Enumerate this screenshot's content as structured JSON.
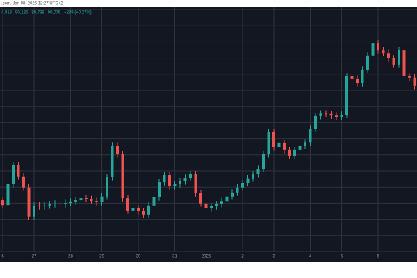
{
  "chart_data": {
    "type": "candlestick",
    "title": ".com, Jan 08, 2026 12:27 UTC+2",
    "ohlc_labels": [
      "4,813",
      "90,135",
      "89,798",
      "90,076",
      "+239 (+0.27%)"
    ],
    "up_color": "#26a69a",
    "down_color": "#ef5350",
    "ylim": [
      86000,
      92000
    ],
    "categories": [
      "6",
      null,
      null,
      null,
      null,
      null,
      "27",
      null,
      null,
      null,
      null,
      null,
      null,
      "28",
      null,
      null,
      null,
      null,
      null,
      "29",
      null,
      null,
      null,
      null,
      null,
      null,
      "30",
      null,
      null,
      null,
      null,
      null,
      null,
      "31",
      null,
      null,
      null,
      null,
      null,
      "2026",
      null,
      null,
      null,
      null,
      null,
      null,
      "2",
      null,
      null,
      null,
      null,
      null,
      "3",
      null,
      null,
      null,
      null,
      null,
      null,
      "4",
      null,
      null,
      null,
      null,
      null,
      "5",
      null,
      null,
      null,
      null,
      null,
      null,
      "6",
      null,
      null,
      null,
      null,
      null,
      null,
      null
    ],
    "open": [
      87300,
      87180,
      87690,
      88150,
      87880,
      87610,
      86900,
      87170,
      87150,
      87170,
      87200,
      87220,
      87200,
      87230,
      87270,
      87300,
      87350,
      87330,
      87280,
      87250,
      87390,
      87860,
      88620,
      88420,
      87350,
      87050,
      87100,
      87030,
      86950,
      87170,
      87370,
      87740,
      87910,
      87640,
      87690,
      87760,
      87840,
      87930,
      87470,
      87220,
      87100,
      87150,
      87200,
      87280,
      87390,
      87490,
      87610,
      87720,
      87830,
      87930,
      88060,
      88420,
      88960,
      88590,
      88690,
      88520,
      88380,
      88520,
      88620,
      88700,
      89040,
      89350,
      89410,
      89400,
      89360,
      89330,
      89380,
      90310,
      90260,
      90140,
      90480,
      90820,
      91120,
      90950,
      90880,
      90750,
      90600,
      90950,
      90310,
      90280
    ],
    "high": [
      87380,
      87770,
      88230,
      88230,
      87960,
      87690,
      87250,
      87250,
      87250,
      87280,
      87300,
      87300,
      87310,
      87350,
      87380,
      87430,
      87430,
      87410,
      87360,
      87470,
      87940,
      88700,
      88700,
      88500,
      87430,
      87180,
      87180,
      87110,
      87250,
      87450,
      87820,
      87990,
      87990,
      87770,
      87840,
      87920,
      88010,
      88010,
      87550,
      87300,
      87230,
      87280,
      87360,
      87470,
      87570,
      87690,
      87800,
      87910,
      88010,
      88140,
      88500,
      89040,
      89040,
      88770,
      88770,
      88600,
      88600,
      88700,
      88780,
      89120,
      89430,
      89490,
      89490,
      89480,
      89440,
      89460,
      90390,
      90390,
      90340,
      90560,
      90900,
      91200,
      91200,
      91030,
      90960,
      90830,
      91030,
      91030,
      90390,
      90360
    ],
    "low": [
      87100,
      87100,
      87610,
      87800,
      87530,
      86820,
      86820,
      87070,
      87070,
      87090,
      87120,
      87120,
      87120,
      87150,
      87190,
      87220,
      87250,
      87200,
      87170,
      87170,
      87310,
      87780,
      88340,
      87270,
      86970,
      86970,
      86950,
      86870,
      86870,
      87090,
      87290,
      87660,
      87560,
      87560,
      87610,
      87680,
      87760,
      87390,
      87140,
      87020,
      87020,
      87070,
      87120,
      87200,
      87310,
      87410,
      87530,
      87640,
      87750,
      87850,
      87980,
      88340,
      88510,
      88510,
      88440,
      88300,
      88300,
      88440,
      88540,
      88620,
      88960,
      89270,
      89320,
      89280,
      89250,
      89250,
      89300,
      90180,
      90060,
      90060,
      90400,
      90740,
      90870,
      90800,
      90670,
      90520,
      90520,
      90230,
      90200,
      89996
    ],
    "close": [
      87180,
      87690,
      88150,
      87880,
      87610,
      86900,
      87170,
      87150,
      87170,
      87200,
      87220,
      87200,
      87230,
      87270,
      87300,
      87350,
      87330,
      87280,
      87250,
      87390,
      87860,
      88620,
      88420,
      87350,
      87050,
      87100,
      87030,
      86950,
      87170,
      87370,
      87740,
      87910,
      87640,
      87690,
      87760,
      87840,
      87930,
      87470,
      87220,
      87100,
      87150,
      87200,
      87280,
      87390,
      87490,
      87610,
      87720,
      87830,
      87930,
      88060,
      88420,
      88960,
      88590,
      88690,
      88520,
      88380,
      88520,
      88620,
      88700,
      89040,
      89350,
      89410,
      89400,
      89360,
      89330,
      89380,
      90310,
      90260,
      90140,
      90480,
      90820,
      91120,
      90950,
      90880,
      90750,
      90600,
      90950,
      90310,
      90280,
      90076
    ]
  }
}
